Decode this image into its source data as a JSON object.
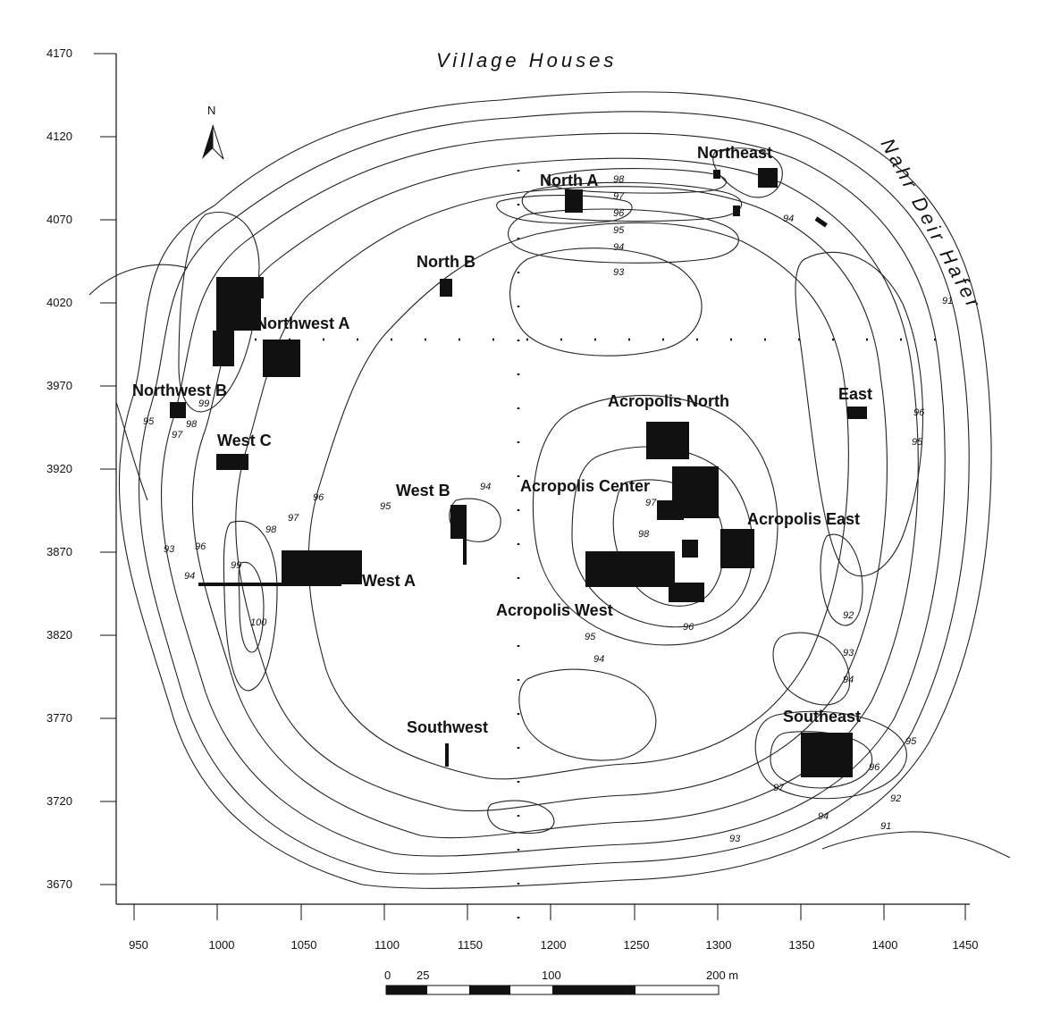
{
  "map": {
    "title_top": "Village Houses",
    "title_river": "Nahr Deir Hafer",
    "north_label": "N",
    "y_ticks": [
      "4170",
      "4120",
      "4070",
      "4020",
      "3970",
      "3920",
      "3870",
      "3820",
      "3770",
      "3720",
      "3670"
    ],
    "x_ticks": [
      "950",
      "1000",
      "1050",
      "1100",
      "1150",
      "1200",
      "1250",
      "1300",
      "1350",
      "1400",
      "1450"
    ],
    "areas": {
      "north_a": "North A",
      "northeast": "Northeast",
      "north_b": "North B",
      "northwest_a": "Northwest A",
      "northwest_b": "Northwest B",
      "west_c": "West C",
      "west_b": "West B",
      "west_a": "West A",
      "acropolis_north": "Acropolis North",
      "acropolis_center": "Acropolis Center",
      "acropolis_east": "Acropolis East",
      "acropolis_west": "Acropolis West",
      "east": "East",
      "southwest": "Southwest",
      "southeast": "Southeast"
    },
    "contour_labels": {
      "c98n": "98",
      "c97n": "97",
      "c96n": "96",
      "c95n": "95",
      "c94n": "94",
      "c93n": "93",
      "c94ne": "94",
      "c91e": "91",
      "c96e": "96",
      "c95e": "95",
      "c99w": "99",
      "c98w": "98",
      "c97w": "97",
      "c95w": "95",
      "c96w": "96",
      "c97w2": "97",
      "c98w2": "98",
      "c95c": "95",
      "c94wb": "94",
      "c93w": "93",
      "c96w3": "96",
      "c94w": "94",
      "c99w2": "99",
      "c100": "100",
      "c97ac": "97",
      "c98ac": "98",
      "c96ac": "96",
      "c95ac": "95",
      "c94ac": "94",
      "c92e": "92",
      "c93e": "93",
      "c94e": "94",
      "c95se": "95",
      "c96se": "96",
      "c97se": "97",
      "c92se": "92",
      "c94se": "94",
      "c91se": "91",
      "c93s": "93"
    },
    "scale": {
      "s0": "0",
      "s25": "25",
      "s100": "100",
      "s200": "200 m"
    }
  }
}
